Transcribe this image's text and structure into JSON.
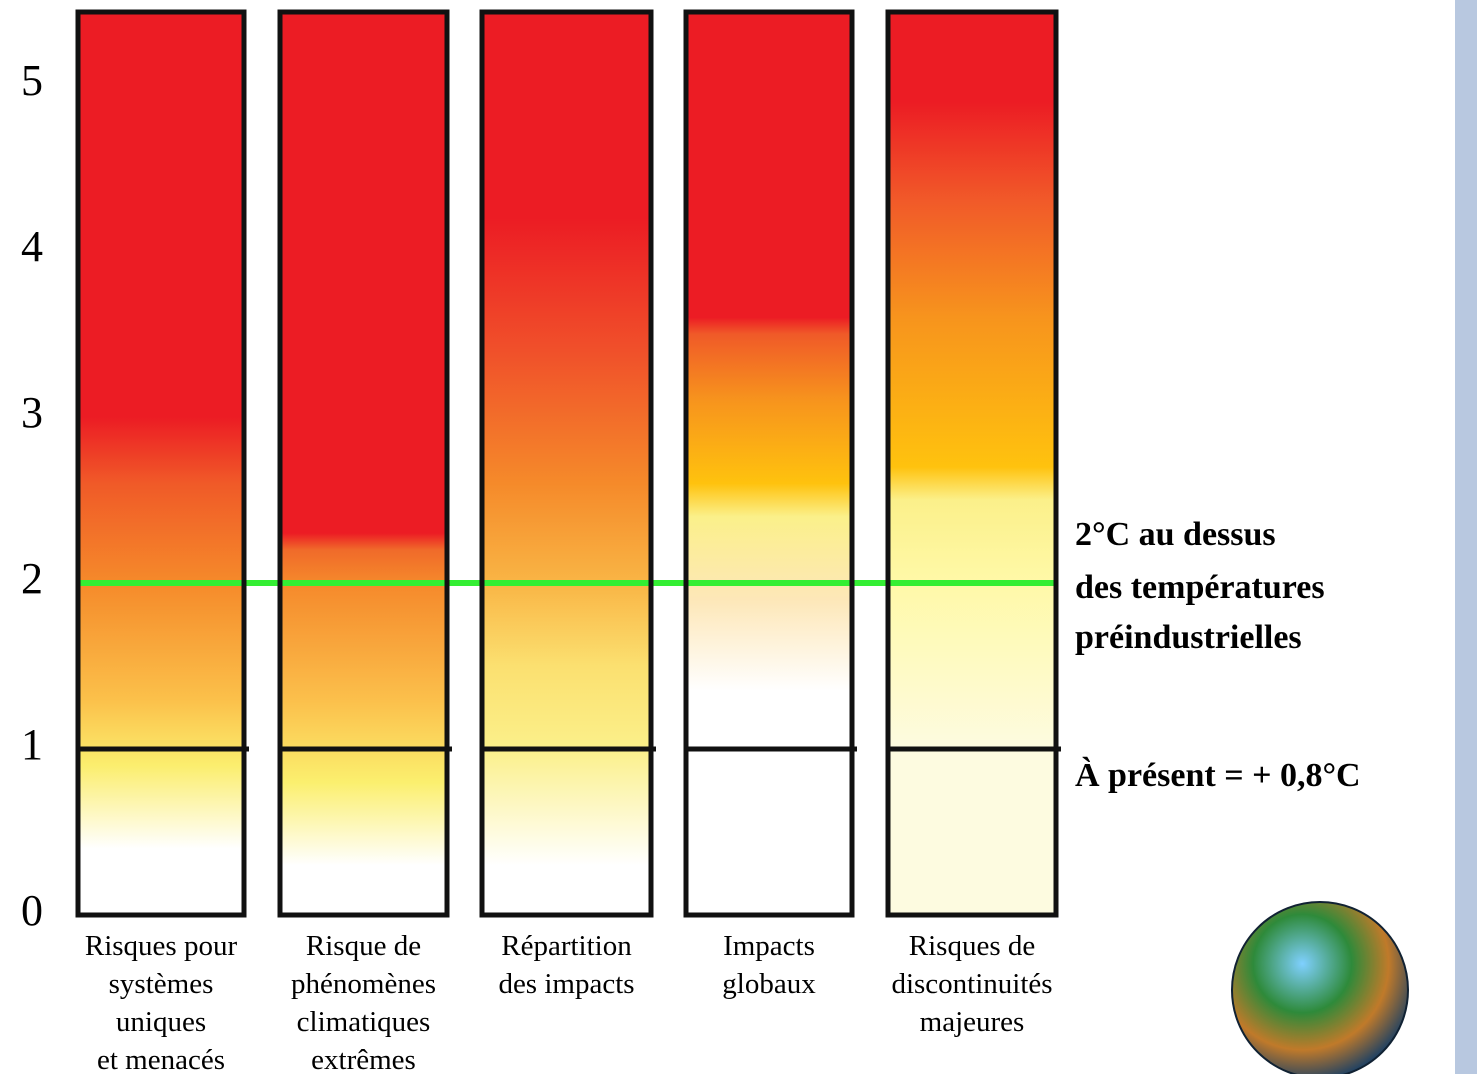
{
  "chart_data": {
    "type": "embers",
    "categories": [
      [
        "Risques pour",
        "systèmes",
        "uniques",
        "et menacés"
      ],
      [
        "Risque de",
        "phénomènes",
        "climatiques",
        "extrêmes"
      ],
      [
        "Répartition",
        "des impacts"
      ],
      [
        "Impacts",
        "globaux"
      ],
      [
        "Risques de",
        "discontinuités",
        "majeures"
      ]
    ],
    "gradients": [
      [
        {
          "value": 0.4,
          "color": "#ffffff"
        },
        {
          "value": 0.9,
          "color": "#fbee6e"
        },
        {
          "value": 1.3,
          "color": "#fbc04a"
        },
        {
          "value": 2.0,
          "color": "#f58a2a"
        },
        {
          "value": 2.6,
          "color": "#f05a28"
        },
        {
          "value": 3.0,
          "color": "#ec1c24"
        }
      ],
      [
        {
          "value": 0.3,
          "color": "#ffffff"
        },
        {
          "value": 0.8,
          "color": "#fbef6e"
        },
        {
          "value": 1.3,
          "color": "#fbbf4b"
        },
        {
          "value": 2.0,
          "color": "#f5892b"
        },
        {
          "value": 2.2,
          "color": "#f06a2a"
        },
        {
          "value": 2.3,
          "color": "#ec1c24"
        }
      ],
      [
        {
          "value": 0.3,
          "color": "#ffffff"
        },
        {
          "value": 1.0,
          "color": "#fbf08a"
        },
        {
          "value": 1.5,
          "color": "#fbe070"
        },
        {
          "value": 2.0,
          "color": "#f9b545"
        },
        {
          "value": 2.6,
          "color": "#f58a2a"
        },
        {
          "value": 3.4,
          "color": "#f0502a"
        },
        {
          "value": 4.2,
          "color": "#ec1c24"
        }
      ],
      [
        {
          "value": 1.35,
          "color": "#ffffff"
        },
        {
          "value": 1.9,
          "color": "#fde7b8"
        },
        {
          "value": 2.4,
          "color": "#fbf08a"
        },
        {
          "value": 2.6,
          "color": "#ffc20e"
        },
        {
          "value": 3.1,
          "color": "#f7941d"
        },
        {
          "value": 3.5,
          "color": "#f05a28"
        },
        {
          "value": 3.6,
          "color": "#ec1c24"
        }
      ],
      [
        {
          "value": 1.0,
          "color": "#fdfbe0"
        },
        {
          "value": 2.0,
          "color": "#fff9a8"
        },
        {
          "value": 2.5,
          "color": "#fbf08a"
        },
        {
          "value": 2.7,
          "color": "#ffc20e"
        },
        {
          "value": 3.6,
          "color": "#f7941d"
        },
        {
          "value": 4.3,
          "color": "#f15a29"
        },
        {
          "value": 4.9,
          "color": "#ec1c24"
        }
      ]
    ],
    "ylim": [
      0,
      5.44
    ],
    "yticks": [
      0,
      1,
      2,
      3,
      4,
      5
    ],
    "reference_lines": [
      {
        "value": 2,
        "color": "#33ee33"
      },
      {
        "value": 1,
        "color": "#111111"
      }
    ],
    "annotations": [
      {
        "lines": [
          "2°C au dessus",
          "des températures",
          "préindustrielles"
        ]
      },
      {
        "lines": [
          "À présent = + 0,8°C"
        ]
      }
    ]
  }
}
